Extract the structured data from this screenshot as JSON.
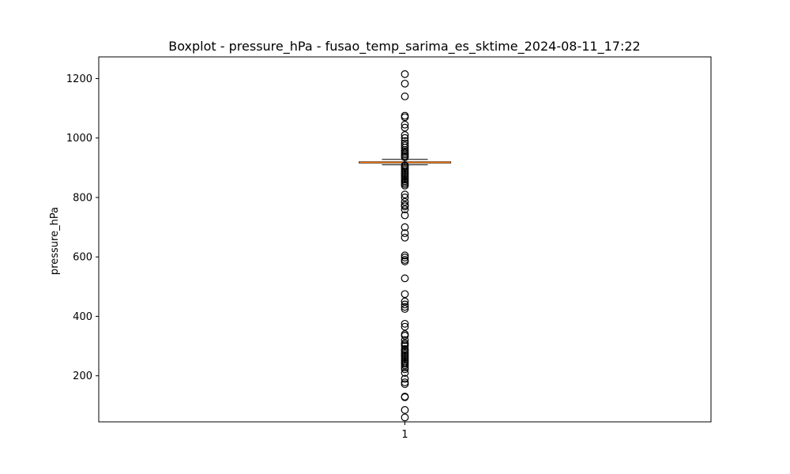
{
  "chart_data": {
    "type": "box",
    "title": "Boxplot - pressure_hPa - fusao_temp_sarima_es_sktime_2024-08-11_17:22",
    "xlabel": "",
    "ylabel": "pressure_hPa",
    "categories": [
      "1"
    ],
    "ylim": [
      45,
      1273
    ],
    "yticks": [
      200,
      400,
      600,
      800,
      1000,
      1200
    ],
    "box": {
      "whisker_low": 910,
      "q1": 916,
      "median": 918,
      "q3": 920,
      "whisker_high": 928
    },
    "outliers": [
      1215,
      1183,
      1140,
      1075,
      1070,
      1045,
      1035,
      1010,
      1000,
      990,
      982,
      975,
      968,
      960,
      955,
      950,
      945,
      940,
      935,
      908,
      905,
      900,
      895,
      890,
      885,
      880,
      875,
      870,
      865,
      860,
      855,
      850,
      845,
      840,
      810,
      800,
      785,
      775,
      770,
      760,
      740,
      700,
      680,
      665,
      605,
      598,
      590,
      585,
      528,
      475,
      450,
      440,
      432,
      425,
      375,
      365,
      340,
      335,
      320,
      310,
      305,
      300,
      290,
      285,
      280,
      275,
      270,
      265,
      260,
      255,
      250,
      245,
      240,
      235,
      228,
      222,
      210,
      190,
      178,
      172,
      130,
      128,
      85,
      60
    ],
    "colors": {
      "median": "#ff7f0e",
      "box": "#000000",
      "outlier": "#000000"
    }
  }
}
